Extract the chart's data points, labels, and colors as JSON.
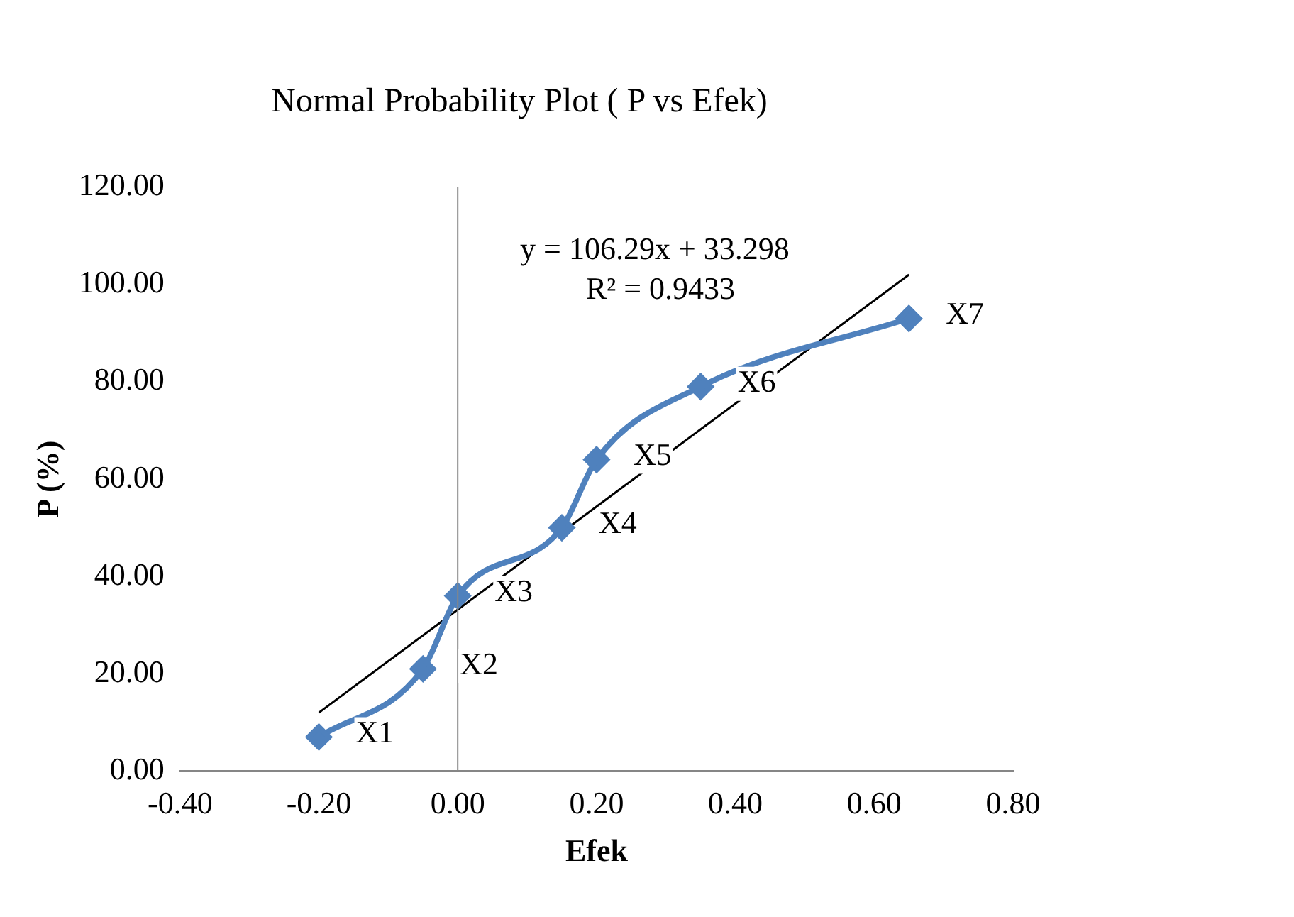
{
  "chart_data": {
    "type": "line",
    "title": "Normal Probability Plot ( P vs Efek)",
    "xlabel": "Efek",
    "ylabel": "P (%)",
    "series": [
      {
        "color": "#4f81bd",
        "marker": "diamond",
        "x": [
          -0.2,
          -0.05,
          0.0,
          0.15,
          0.2,
          0.35,
          0.65
        ],
        "values": [
          7,
          21,
          36,
          50,
          64,
          79,
          93
        ]
      },
      {
        "color": "#000000",
        "marker": "none",
        "x": [
          -0.2,
          0.65
        ],
        "values": [
          12,
          102
        ]
      }
    ],
    "xlim": [
      -0.4,
      0.8
    ],
    "xticks": [
      {
        "value": -0.4,
        "label": "-0.40"
      },
      {
        "value": -0.2,
        "label": "-0.20"
      },
      {
        "value": 0,
        "label": "0.00"
      },
      {
        "value": 0.2,
        "label": "0.20"
      },
      {
        "value": 0.4,
        "label": "0.40"
      },
      {
        "value": 0.6,
        "label": "0.60"
      },
      {
        "value": 0.8,
        "label": "0.80"
      }
    ],
    "ylim": [
      0,
      120
    ],
    "yticks": [
      {
        "value": 0,
        "label": "0.00"
      },
      {
        "value": 20,
        "label": "20.00"
      },
      {
        "value": 40,
        "label": "40.00"
      },
      {
        "value": 60,
        "label": "60.00"
      },
      {
        "value": 80,
        "label": "80.00"
      },
      {
        "value": 100,
        "label": "100.00"
      },
      {
        "value": 120,
        "label": "120.00"
      }
    ],
    "ref_lines": [
      {
        "axis": "x",
        "value": 0,
        "color": "#868686"
      }
    ],
    "annotations": [
      {
        "text": "X1",
        "x": -0.2,
        "y": 7
      },
      {
        "text": "X2",
        "x": -0.05,
        "y": 21
      },
      {
        "text": "X3",
        "x": 0.0,
        "y": 36
      },
      {
        "text": "X4",
        "x": 0.15,
        "y": 50
      },
      {
        "text": "X5",
        "x": 0.2,
        "y": 64
      },
      {
        "text": "X6",
        "x": 0.35,
        "y": 79
      },
      {
        "text": "X7",
        "x": 0.65,
        "y": 93
      },
      "y = 106.29x + 33.298",
      "R² = 0.9433"
    ],
    "grid": false,
    "legend": false
  }
}
